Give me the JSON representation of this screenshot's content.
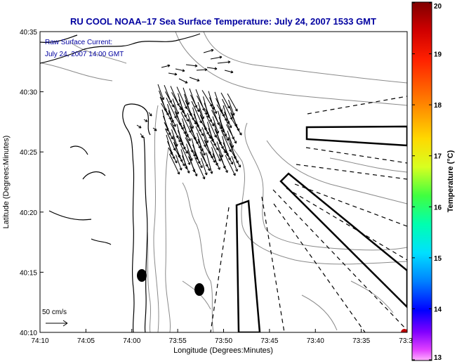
{
  "title": "RU COOL  NOAA–17  Sea Surface Temperature:  July 24, 2007 1533 GMT",
  "annotation": {
    "line1": "Raw Surface Current:",
    "line2": "July 24, 2007 14:00 GMT"
  },
  "scale_label": "50 cm/s",
  "axes": {
    "xlabel": "Longitude (Degrees:Minutes)",
    "ylabel": "Latitude (Degrees:Minutes)",
    "x_ticks": [
      "74:10",
      "74:05",
      "74:00",
      "73:55",
      "73:50",
      "73:45",
      "73:40",
      "73:35",
      "73:3"
    ],
    "y_ticks": [
      "40:35",
      "40:30",
      "40:25",
      "40:20",
      "40:15",
      "40:10"
    ]
  },
  "colorbar": {
    "label": "Temperature (°C)",
    "ticks": [
      "20",
      "19",
      "18",
      "17",
      "16",
      "15",
      "14",
      "13"
    ],
    "min": 13,
    "max": 20
  },
  "colors": {
    "title": "#0000a0",
    "annotation": "#0000a0"
  }
}
